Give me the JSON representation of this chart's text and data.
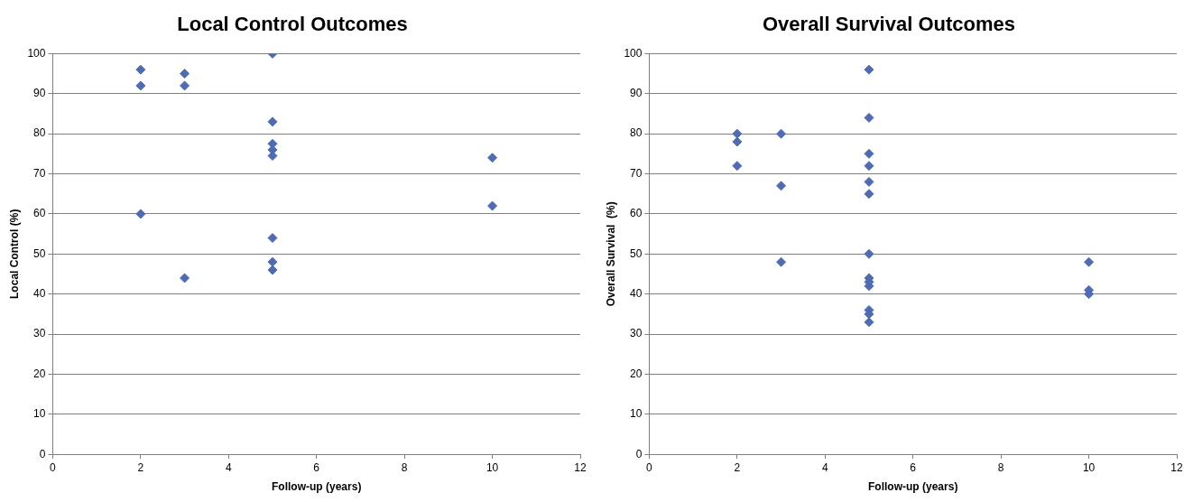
{
  "chart_data": [
    {
      "type": "scatter",
      "title": "Local Control Outcomes",
      "xlabel": "Follow-up (years)",
      "ylabel": "Local Control (%)",
      "series": [
        {
          "color": "#4f6bb5",
          "x": [
            2,
            2,
            2,
            3,
            3,
            3,
            5,
            5,
            5,
            5,
            5,
            5,
            5,
            5,
            10,
            10
          ],
          "values": [
            96,
            92,
            60,
            95,
            92,
            44,
            100,
            83,
            77.5,
            76,
            74.5,
            54,
            48,
            46,
            74,
            62
          ]
        }
      ],
      "xlim": [
        0,
        12
      ],
      "xticks": [
        0,
        2,
        4,
        6,
        8,
        10,
        12
      ],
      "ylim": [
        0,
        100
      ],
      "yticks": [
        0,
        10,
        20,
        30,
        40,
        50,
        60,
        70,
        80,
        90,
        100
      ],
      "grid": "y",
      "legend": false,
      "marker": "diamond"
    },
    {
      "type": "scatter",
      "title": "Overall Survival Outcomes",
      "xlabel": "Follow-up (years)",
      "ylabel": "Overall Survival  (%)",
      "series": [
        {
          "color": "#4f6bb5",
          "x": [
            2,
            2,
            2,
            3,
            3,
            3,
            5,
            5,
            5,
            5,
            5,
            5,
            5,
            5,
            5,
            5,
            5,
            5,
            5,
            10,
            10,
            10
          ],
          "values": [
            80,
            78,
            72,
            80,
            67,
            48,
            96,
            84,
            75,
            72,
            68,
            65,
            50,
            44,
            43,
            42,
            36,
            35,
            33,
            48,
            41,
            40
          ]
        }
      ],
      "xlim": [
        0,
        12
      ],
      "xticks": [
        0,
        2,
        4,
        6,
        8,
        10,
        12
      ],
      "ylim": [
        0,
        100
      ],
      "yticks": [
        0,
        10,
        20,
        30,
        40,
        50,
        60,
        70,
        80,
        90,
        100
      ],
      "grid": "y",
      "legend": false,
      "marker": "diamond"
    }
  ]
}
